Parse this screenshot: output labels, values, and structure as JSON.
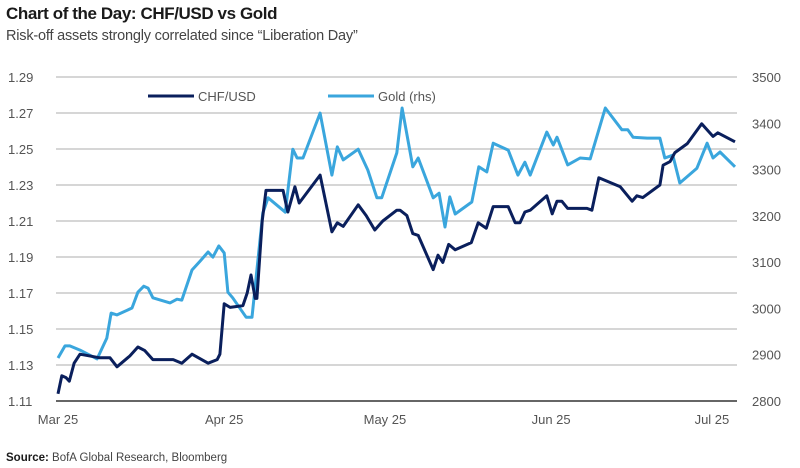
{
  "header": {
    "title": "Chart of the Day: CHF/USD vs Gold",
    "subtitle": "Risk-off assets strongly correlated since “Liberation Day”"
  },
  "footer": {
    "source_label": "Source:",
    "source_text": " BofA Global Research, Bloomberg"
  },
  "chart_data": {
    "type": "line",
    "title": "Chart of the Day: CHF/USD vs Gold",
    "subtitle": "Risk-off assets strongly correlated since “Liberation Day”",
    "x_unit": "days since Mar 25",
    "xlim": [
      0,
      126.5
    ],
    "x_ticks": [
      {
        "day": 0,
        "label": "Mar 25"
      },
      {
        "day": 31,
        "label": "Apr 25"
      },
      {
        "day": 61,
        "label": "May 25"
      },
      {
        "day": 92,
        "label": "Jun 25"
      },
      {
        "day": 122,
        "label": "Jul 25"
      }
    ],
    "y_left": {
      "lim": [
        1.11,
        1.29
      ],
      "ticks": [
        "1.29",
        "1.27",
        "1.25",
        "1.23",
        "1.21",
        "1.19",
        "1.17",
        "1.15",
        "1.13",
        "1.11"
      ]
    },
    "y_right": {
      "lim": [
        2800,
        3500
      ],
      "ticks": [
        "3500",
        "3400",
        "3300",
        "3200",
        "3100",
        "3000",
        "2900",
        "2800"
      ]
    },
    "grid": true,
    "legend_position": "top",
    "series": [
      {
        "name": "CHF/USD",
        "axis": "left",
        "color": "#0a1f5c",
        "x": [
          0,
          0.7,
          1.5,
          2.1,
          3.0,
          4.1,
          7.8,
          9.7,
          11.0,
          13.4,
          14.9,
          16.2,
          17.7,
          21.5,
          23.1,
          25.0,
          28.0,
          29.7,
          30.2,
          31.0,
          32.1,
          34.5,
          35.3,
          36.0,
          36.8,
          37.1,
          38.1,
          38.8,
          42.0,
          42.5,
          42.9,
          44.2,
          45.0,
          48.9,
          51.1,
          52.1,
          53.2,
          56.0,
          57.5,
          59.1,
          60.6,
          63.2,
          63.8,
          65.1,
          66.2,
          67.2,
          70.0,
          70.9,
          71.8,
          72.9,
          74.1,
          77.1,
          78.4,
          79.9,
          81.2,
          84.0,
          85.3,
          86.2,
          87.1,
          88.1,
          91.2,
          92.2,
          93.1,
          94.0,
          95.1,
          98.7,
          99.6,
          100.9,
          104.9,
          107.1,
          108.0,
          109.1,
          112.3,
          112.9,
          114.2,
          115.1,
          117.4,
          120.1,
          122.2,
          123.1,
          126.3
        ],
        "values": [
          1.114,
          1.124,
          1.123,
          1.121,
          1.131,
          1.136,
          1.134,
          1.134,
          1.129,
          1.135,
          1.14,
          1.138,
          1.133,
          1.133,
          1.131,
          1.136,
          1.131,
          1.133,
          1.136,
          1.164,
          1.162,
          1.163,
          1.17,
          1.18,
          1.167,
          1.167,
          1.21,
          1.227,
          1.227,
          1.22,
          1.215,
          1.229,
          1.22,
          1.2355,
          1.204,
          1.209,
          1.207,
          1.219,
          1.213,
          1.205,
          1.21,
          1.216,
          1.216,
          1.213,
          1.203,
          1.202,
          1.183,
          1.191,
          1.187,
          1.197,
          1.194,
          1.198,
          1.209,
          1.206,
          1.218,
          1.218,
          1.209,
          1.209,
          1.215,
          1.216,
          1.224,
          1.214,
          1.221,
          1.221,
          1.217,
          1.217,
          1.216,
          1.234,
          1.229,
          1.221,
          1.224,
          1.223,
          1.23,
          1.241,
          1.243,
          1.248,
          1.253,
          1.264,
          1.257,
          1.259,
          1.254
        ]
      },
      {
        "name": "Gold (rhs)",
        "axis": "right",
        "color": "#3aa6dd",
        "x": [
          0,
          1.3,
          2.2,
          4.1,
          7.3,
          9.1,
          9.9,
          11.0,
          13.8,
          14.9,
          16.0,
          16.8,
          17.7,
          20.9,
          22.2,
          23.1,
          25.0,
          26.5,
          28.0,
          28.9,
          30.0,
          31.0,
          31.7,
          32.6,
          35.1,
          36.2,
          38.2,
          39.2,
          42.4,
          43.8,
          44.6,
          45.7,
          48.9,
          51.1,
          52.1,
          53.2,
          56.0,
          57.8,
          59.5,
          60.4,
          63.2,
          64.2,
          66.2,
          67.2,
          70.0,
          71.1,
          72.2,
          73.1,
          74.1,
          77.2,
          78.5,
          80.0,
          81.2,
          84.0,
          85.8,
          87.1,
          88.1,
          91.2,
          92.4,
          93.1,
          95.1,
          97.4,
          99.3,
          102.1,
          105.2,
          106.3,
          107.3,
          109.9,
          112.3,
          113.2,
          114.7,
          116.0,
          119.2,
          121.1,
          122.2,
          123.5,
          126.3
        ],
        "values": [
          2893,
          2919,
          2919,
          2910,
          2891,
          2936,
          2990,
          2986,
          3001,
          3035,
          3048,
          3044,
          3023,
          3012,
          3020,
          3018,
          3083,
          3102,
          3122,
          3111,
          3135,
          3120,
          3035,
          3023,
          2981,
          2981,
          3206,
          3239,
          3208,
          3344,
          3325,
          3325,
          3422,
          3288,
          3349,
          3321,
          3344,
          3299,
          3239,
          3239,
          3336,
          3433,
          3306,
          3325,
          3239,
          3249,
          3176,
          3241,
          3204,
          3230,
          3306,
          3295,
          3357,
          3342,
          3288,
          3316,
          3288,
          3381,
          3353,
          3370,
          3310,
          3325,
          3323,
          3433,
          3386,
          3386,
          3370,
          3368,
          3368,
          3325,
          3331,
          3271,
          3303,
          3357,
          3325,
          3338,
          3306
        ]
      }
    ]
  }
}
